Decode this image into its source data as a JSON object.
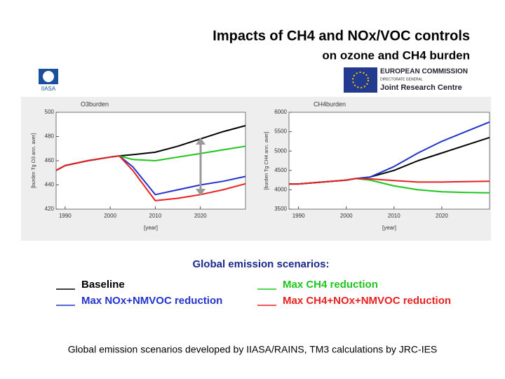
{
  "header": {
    "title": "Impacts of CH4 and NOx/VOC controls",
    "subtitle": "on ozone and CH4 burden"
  },
  "logos": {
    "left": "IIASA",
    "right_line1": "EUROPEAN COMMISSION",
    "right_line2": "DIRECTORATE GENERAL",
    "right_line3": "Joint Research Centre"
  },
  "chart_data": [
    {
      "type": "line",
      "title": "O3burden",
      "ylabel": "[burden Tg O3 ann. aver]",
      "xlabel": "[year]",
      "x": [
        1988,
        1990,
        1995,
        2000,
        2002,
        2005,
        2010,
        2015,
        2020,
        2025,
        2030
      ],
      "xlim": [
        1988,
        2030
      ],
      "xticks": [
        1990,
        2000,
        2010,
        2020
      ],
      "ylim": [
        420,
        500
      ],
      "yticks": [
        420,
        440,
        460,
        480,
        500
      ],
      "series": [
        {
          "name": "Baseline",
          "color": "#000000",
          "values": [
            452,
            456,
            460,
            463,
            464,
            465,
            467,
            472,
            478,
            484,
            489
          ]
        },
        {
          "name": "Max CH4 reduction",
          "color": "#1fc41f",
          "values": [
            452,
            456,
            460,
            463,
            464,
            461,
            460,
            463,
            466,
            469,
            472
          ]
        },
        {
          "name": "Max NOx+NMVOC reduction",
          "color": "#2233cc",
          "values": [
            452,
            456,
            460,
            463,
            464,
            455,
            432,
            436,
            440,
            443,
            447
          ]
        },
        {
          "name": "Max CH4+NOx+NMVOC reduction",
          "color": "#e82020",
          "values": [
            452,
            456,
            460,
            463,
            464,
            452,
            427,
            429,
            432,
            436,
            441
          ]
        }
      ]
    },
    {
      "type": "line",
      "title": "CH4burden",
      "ylabel": "[burden Tg CH4 ann. aver]",
      "xlabel": "[year]",
      "x": [
        1988,
        1990,
        1995,
        2000,
        2002,
        2005,
        2010,
        2015,
        2020,
        2025,
        2030
      ],
      "xlim": [
        1988,
        2030
      ],
      "xticks": [
        1990,
        2000,
        2010,
        2020
      ],
      "ylim": [
        3500,
        6000
      ],
      "yticks": [
        3500,
        4000,
        4500,
        5000,
        5500,
        6000
      ],
      "series": [
        {
          "color": "#000000",
          "values": [
            4150,
            4150,
            4200,
            4250,
            4290,
            4330,
            4500,
            4750,
            4950,
            5150,
            5350
          ]
        },
        {
          "color": "#1fc41f",
          "values": [
            4150,
            4150,
            4200,
            4250,
            4290,
            4250,
            4100,
            4000,
            3950,
            3930,
            3920
          ]
        },
        {
          "color": "#2233cc",
          "values": [
            4150,
            4150,
            4200,
            4250,
            4290,
            4330,
            4600,
            4950,
            5250,
            5500,
            5750
          ]
        },
        {
          "color": "#e82020",
          "values": [
            4150,
            4150,
            4200,
            4250,
            4290,
            4280,
            4240,
            4200,
            4200,
            4210,
            4220
          ]
        }
      ]
    }
  ],
  "legend_title": "Global emission scenarios:",
  "footer": "Global emission scenarios developed by IIASA/RAINS, TM3 calculations by JRC-IES"
}
